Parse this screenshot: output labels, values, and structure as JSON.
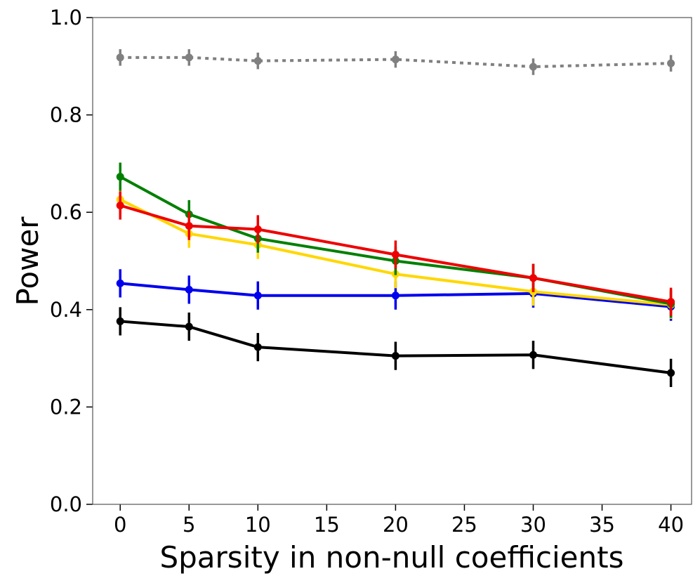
{
  "chart_data": {
    "type": "line",
    "title": "",
    "xlabel": "Sparsity in non-null coefficients",
    "ylabel": "Power",
    "xlim": [
      -2,
      41.5
    ],
    "ylim": [
      0.0,
      1.0
    ],
    "xticks": [
      0,
      5,
      10,
      15,
      20,
      25,
      30,
      35,
      40
    ],
    "xtick_labels": [
      "0",
      "5",
      "10",
      "15",
      "20",
      "25",
      "30",
      "35",
      "40"
    ],
    "yticks": [
      0.0,
      0.2,
      0.4,
      0.6,
      0.8,
      1.0
    ],
    "ytick_labels": [
      "0.0",
      "0.2",
      "0.4",
      "0.6",
      "0.8",
      "1.0"
    ],
    "grid": false,
    "legend": "none",
    "x": [
      0,
      5,
      10,
      20,
      30,
      40
    ],
    "series": [
      {
        "name": "gray",
        "color": "#808080",
        "dashed": true,
        "values": [
          0.918,
          0.918,
          0.911,
          0.914,
          0.899,
          0.906
        ],
        "err": [
          0.017,
          0.017,
          0.017,
          0.017,
          0.017,
          0.017
        ]
      },
      {
        "name": "black",
        "color": "#000000",
        "dashed": false,
        "values": [
          0.376,
          0.365,
          0.323,
          0.305,
          0.307,
          0.27
        ],
        "err": [
          0.029,
          0.029,
          0.029,
          0.029,
          0.029,
          0.029
        ]
      },
      {
        "name": "blue",
        "color": "#0000ee",
        "dashed": false,
        "values": [
          0.454,
          0.441,
          0.429,
          0.429,
          0.433,
          0.406
        ],
        "err": [
          0.029,
          0.029,
          0.029,
          0.029,
          0.029,
          0.029
        ]
      },
      {
        "name": "yellow",
        "color": "#ffd700",
        "dashed": false,
        "values": [
          0.626,
          0.556,
          0.533,
          0.473,
          0.437,
          0.41
        ],
        "err": [
          0.029,
          0.029,
          0.029,
          0.029,
          0.029,
          0.029
        ]
      },
      {
        "name": "green",
        "color": "#008000",
        "dashed": false,
        "values": [
          0.673,
          0.596,
          0.546,
          0.5,
          0.465,
          0.412
        ],
        "err": [
          0.029,
          0.029,
          0.029,
          0.029,
          0.029,
          0.029
        ]
      },
      {
        "name": "red",
        "color": "#ee0000",
        "dashed": false,
        "values": [
          0.614,
          0.572,
          0.565,
          0.513,
          0.465,
          0.416
        ],
        "err": [
          0.029,
          0.029,
          0.029,
          0.029,
          0.029,
          0.029
        ]
      }
    ]
  }
}
